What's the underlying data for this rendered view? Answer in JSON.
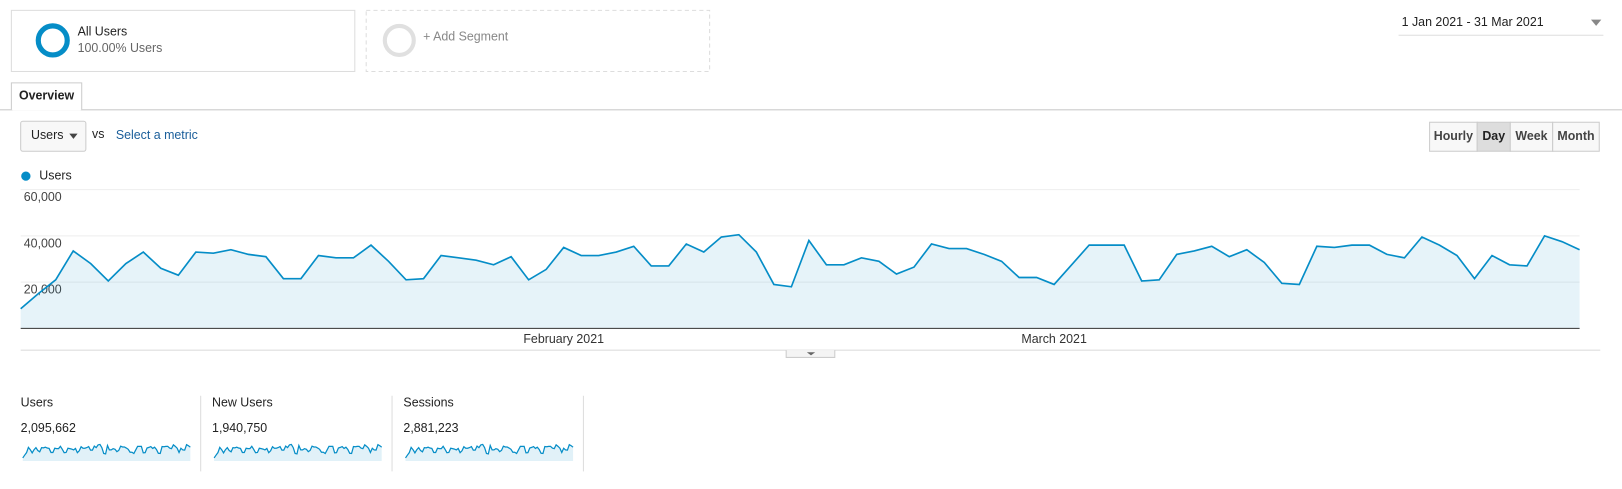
{
  "segments": [
    {
      "name": "All Users",
      "detail": "100.00% Users"
    },
    {
      "name": "+ Add Segment"
    }
  ],
  "date_range": "1 Jan 2021 - 31 Mar 2021",
  "tabs": [
    "Overview"
  ],
  "metric_selector": {
    "metric": "Users",
    "vs": "vs",
    "secondary": "Select a metric"
  },
  "granularity": {
    "options": [
      "Hourly",
      "Day",
      "Week",
      "Month"
    ],
    "selected": "Day"
  },
  "chart_data": {
    "type": "line",
    "categories": [
      null,
      null,
      null,
      null,
      null,
      null,
      null,
      null,
      null,
      null,
      null,
      null,
      null,
      null,
      null,
      null,
      null,
      null,
      null,
      null,
      null,
      null,
      null,
      null,
      null,
      null,
      null,
      null,
      null,
      null,
      null,
      "February 2021",
      null,
      null,
      null,
      null,
      null,
      null,
      null,
      null,
      null,
      null,
      null,
      null,
      null,
      null,
      null,
      null,
      null,
      null,
      null,
      null,
      null,
      null,
      null,
      null,
      null,
      null,
      null,
      "March 2021",
      null,
      null,
      null,
      null,
      null,
      null,
      null,
      null,
      null,
      null,
      null,
      null,
      null,
      null,
      null,
      null,
      null,
      null,
      null,
      null,
      null,
      null,
      null,
      null,
      null,
      null,
      null,
      null,
      null,
      null
    ],
    "series": [
      {
        "name": "Users",
        "color": "#058dc7",
        "values": [
          8500,
          15000,
          21000,
          33500,
          28000,
          20500,
          28000,
          33000,
          26000,
          23000,
          33000,
          32500,
          34000,
          32000,
          31000,
          21500,
          21500,
          31500,
          30500,
          30500,
          36000,
          29000,
          21000,
          21500,
          31500,
          30500,
          29500,
          27500,
          31000,
          21000,
          25500,
          35000,
          31500,
          31500,
          33000,
          35500,
          27000,
          27000,
          36500,
          33000,
          39500,
          40500,
          33000,
          19000,
          18000,
          38000,
          27500,
          27500,
          30500,
          29000,
          23500,
          26500,
          36500,
          34500,
          34500,
          32000,
          29000,
          22000,
          22000,
          19000,
          27500,
          36000,
          36000,
          36000,
          20500,
          21000,
          32000,
          33500,
          35500,
          31000,
          34000,
          28500,
          19500,
          19000,
          35500,
          35000,
          36000,
          36000,
          32000,
          30500,
          39500,
          36000,
          31500,
          21500,
          31500,
          27500,
          27000,
          40000,
          37500,
          34000
        ]
      }
    ],
    "ylim": [
      0,
      60000
    ],
    "yticks": [
      {
        "value": 20000,
        "label": "20,000"
      },
      {
        "value": 40000,
        "label": "40,000"
      },
      {
        "value": 60000,
        "label": "60,000"
      }
    ],
    "grid": true,
    "fill": true
  },
  "scorecards": [
    {
      "label": "Users",
      "value": "2,095,662"
    },
    {
      "label": "New Users",
      "value": "1,940,750"
    },
    {
      "label": "Sessions",
      "value": "2,881,223"
    }
  ]
}
